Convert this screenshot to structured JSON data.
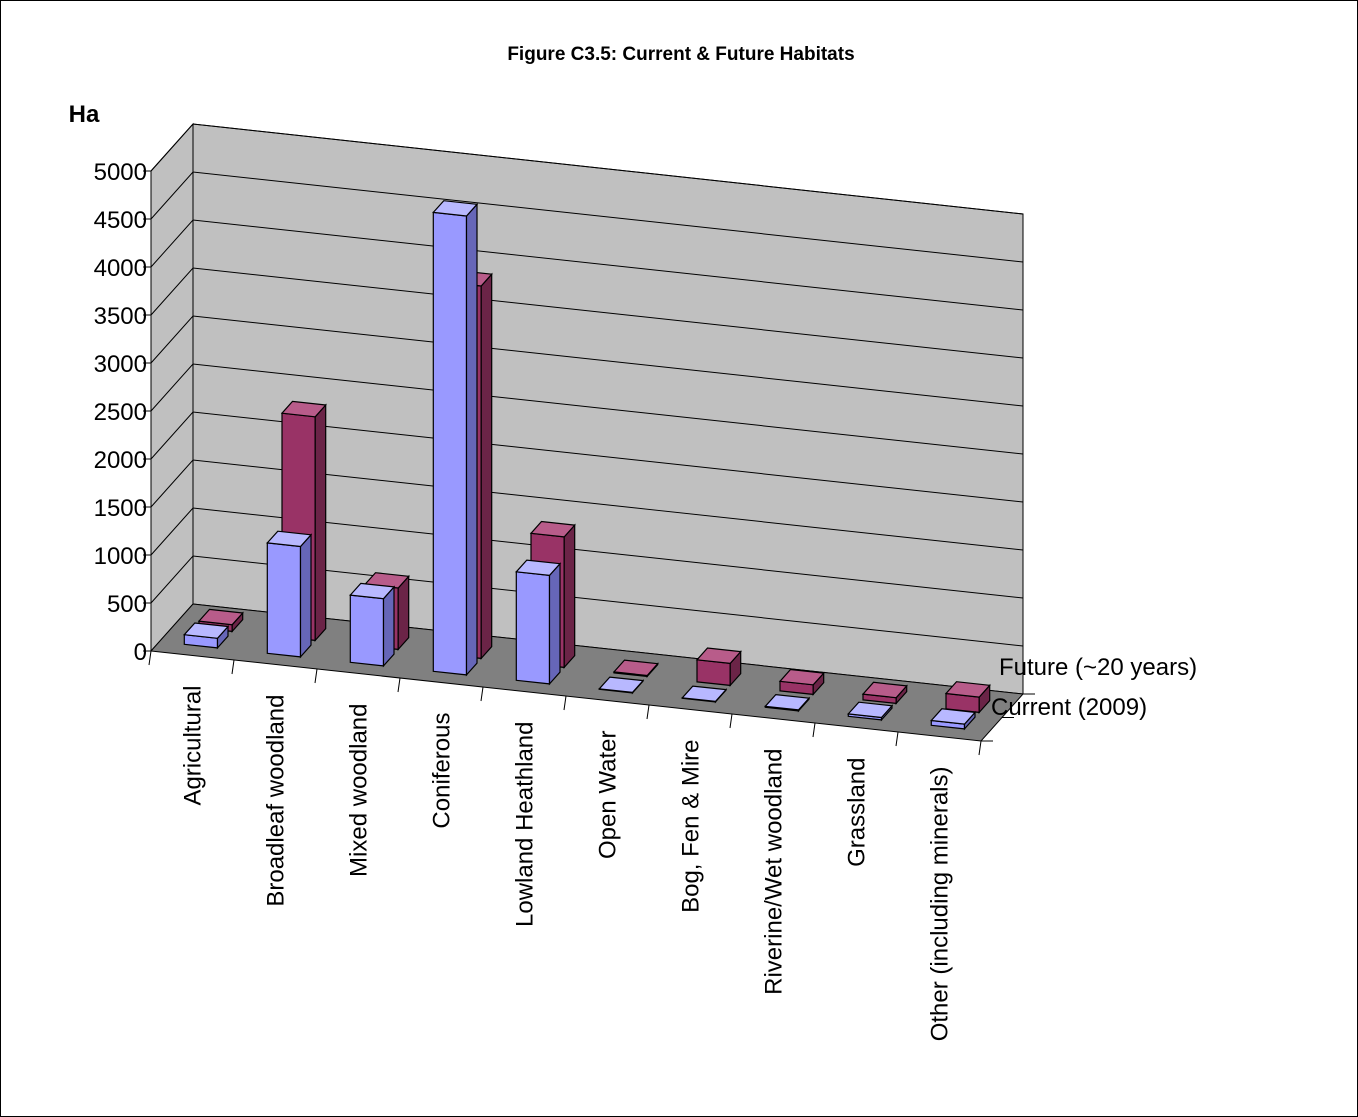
{
  "chart_data": {
    "type": "bar",
    "title": "Figure C3.5: Current & Future Habitats",
    "ylabel": "Ha",
    "xlabel": "",
    "ylim": [
      0,
      5000
    ],
    "yticks": [
      "0",
      "500",
      "1000",
      "1500",
      "2000",
      "2500",
      "3000",
      "3500",
      "4000",
      "4500",
      "5000"
    ],
    "categories": [
      "Agricultural",
      "Broadleaf woodland",
      "Mixed woodland",
      "Coniferous",
      "Lowland Heathland",
      "Open Water",
      "Bog, Fen & Mire",
      "Riverine/Wet woodland",
      "Grassland",
      "Other (including minerals)"
    ],
    "series": [
      {
        "name": "Current (2009)",
        "values": [
          100,
          1150,
          700,
          4780,
          1130,
          5,
          5,
          10,
          25,
          50
        ]
      },
      {
        "name": "Future (~20 years)",
        "values": [
          70,
          2330,
          640,
          3880,
          1360,
          10,
          230,
          100,
          60,
          160
        ]
      }
    ],
    "grid": true,
    "style": "3d-clustered-depth",
    "colors": {
      "current_front": "#9999FF",
      "current_top": "#B8B8FF",
      "current_side": "#6666B8",
      "future_front": "#993366",
      "future_top": "#B85C8A",
      "future_side": "#6B2447",
      "back_wall": "#C0C0C0",
      "side_wall": "#C0C0C0",
      "floor": "#808080",
      "grid": "#000000"
    }
  }
}
